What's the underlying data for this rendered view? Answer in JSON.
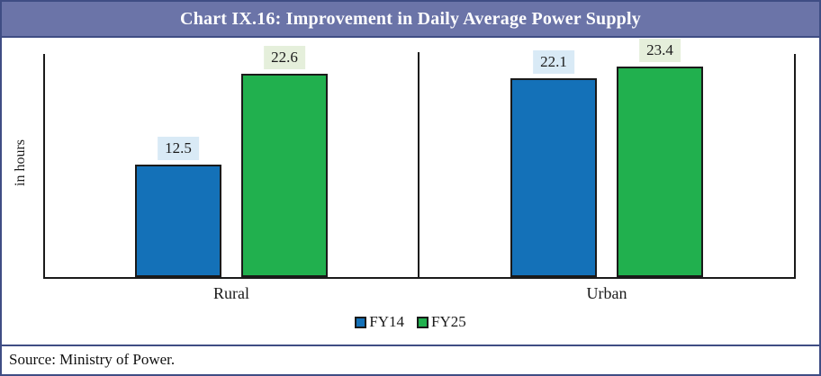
{
  "header": {
    "title": "Chart IX.16: Improvement in Daily Average Power Supply"
  },
  "source": {
    "text": "Source: Ministry of Power."
  },
  "colors": {
    "title_bar_bg": "#6b74a8",
    "frame_border": "#3f4d84",
    "axis_line": "#1a1a1a",
    "fy14_bar": "#1471b8",
    "fy25_bar": "#21b04e",
    "fy14_label_bg": "#d9eaf6",
    "fy25_label_bg": "#e5efdb"
  },
  "chart_data": {
    "type": "bar",
    "categories": [
      "Rural",
      "Urban"
    ],
    "series": [
      {
        "name": "FY14",
        "color": "#1471b8",
        "label_bg": "#d9eaf6",
        "values": [
          12.5,
          22.1
        ]
      },
      {
        "name": "FY25",
        "color": "#21b04e",
        "label_bg": "#e5efdb",
        "values": [
          22.6,
          23.4
        ]
      }
    ],
    "title": "Chart IX.16: Improvement in Daily Average Power Supply",
    "xlabel": "",
    "ylabel": "in hours",
    "ylim": [
      0,
      25
    ],
    "grid": false,
    "legend_position": "bottom",
    "data_labels_shown": true
  }
}
